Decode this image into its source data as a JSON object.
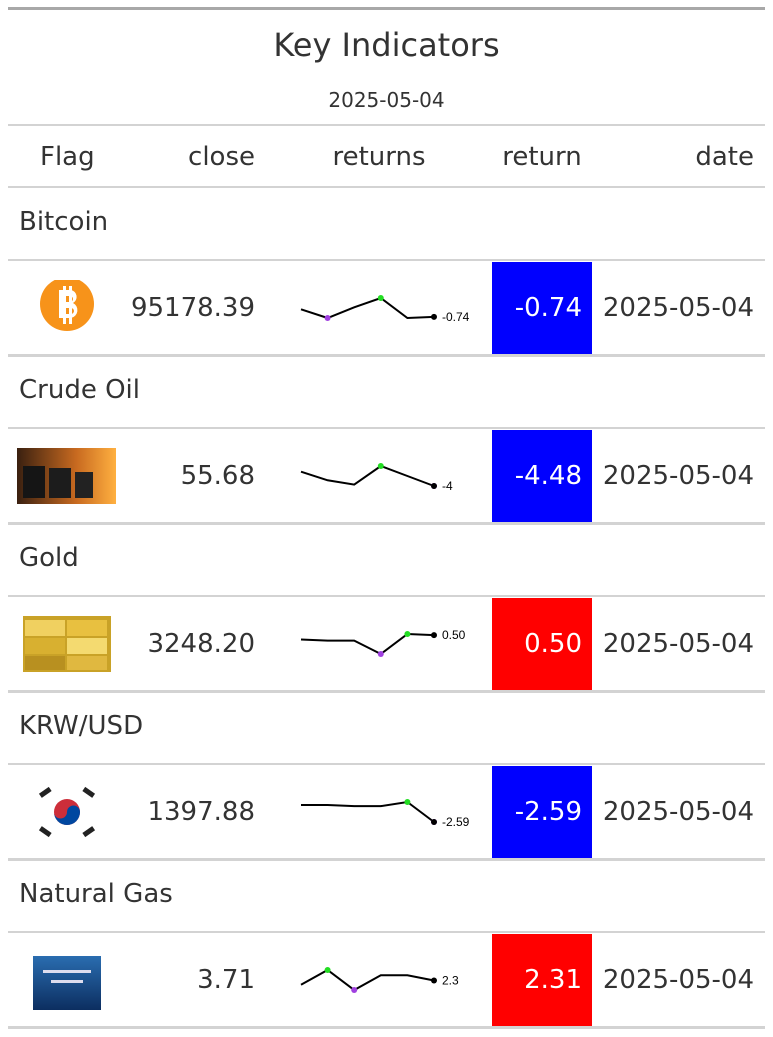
{
  "header": {
    "title": "Key Indicators",
    "subtitle": "2025-05-04"
  },
  "columns": [
    "Flag",
    "close",
    "returns",
    "return",
    "date"
  ],
  "positive_color": "#ff0000",
  "negative_color": "#0000ff",
  "sparkline_colors": {
    "line": "#000000",
    "max": "#22dd22",
    "min": "#a040e0",
    "last": "#000000"
  },
  "groups": [
    {
      "name": "Bitcoin",
      "flag": "bitcoin",
      "close": "95178.39",
      "returns": {
        "values": [
          0.4,
          -0.9,
          0.7,
          2.1,
          -0.9,
          -0.74
        ],
        "end_label": "-0.74"
      },
      "return": -0.74,
      "date": "2025-05-04"
    },
    {
      "name": "Crude Oil",
      "flag": "oil",
      "close": "55.68",
      "returns": {
        "values": [
          -1.28,
          -3.2,
          -4.16,
          0,
          -2.24,
          -4.48
        ],
        "end_label": "-4"
      },
      "return": -4.48,
      "date": "2025-05-04"
    },
    {
      "name": "Gold",
      "flag": "gold",
      "close": "3248.20",
      "returns": {
        "values": [
          0.1,
          0,
          0,
          -1.2,
          0.6,
          0.5
        ],
        "end_label": "0.50"
      },
      "return": {
        "value": 0.5,
        "label": "0.50"
      },
      "date": "2025-05-04"
    },
    {
      "name": "KRW/USD",
      "flag": "korea",
      "close": "1397.88",
      "returns": {
        "values": [
          0.3,
          0.3,
          0.1,
          0.1,
          0.8,
          -2.59
        ],
        "end_label": "-2.59"
      },
      "return": -2.59,
      "date": "2025-05-04"
    },
    {
      "name": "Natural Gas",
      "flag": "gas",
      "close": "3.71",
      "returns": {
        "values": [
          0.43,
          7,
          -1.91,
          4.66,
          4.66,
          2.31
        ],
        "end_label": "2.3"
      },
      "return": 2.31,
      "date": "2025-05-04"
    }
  ]
}
